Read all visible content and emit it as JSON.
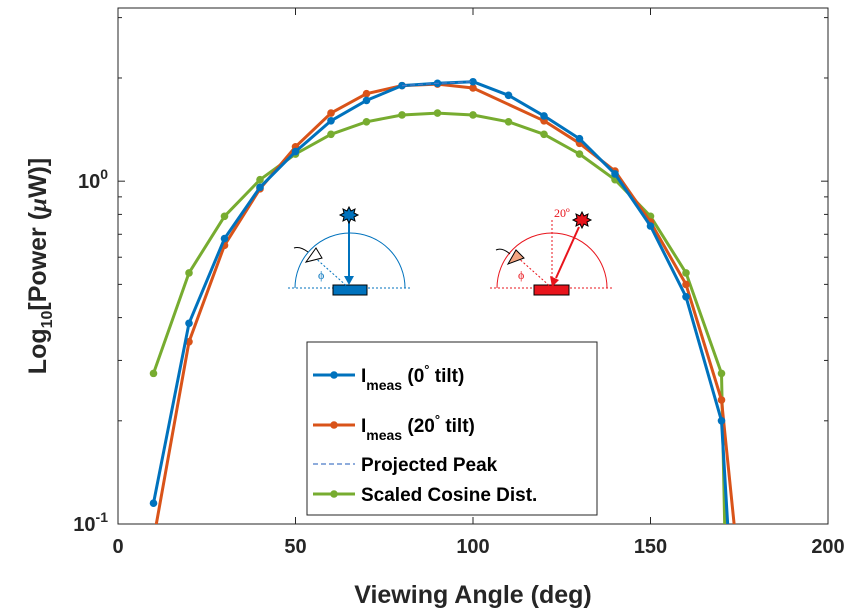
{
  "chart_data": {
    "type": "line",
    "title": "",
    "xlabel": "Viewing Angle (deg)",
    "ylabel_parts": {
      "pre": "Log",
      "sub": "10",
      "post": "[Power (",
      "mu": "μ",
      "unit": "W)]"
    },
    "xlim": [
      0,
      200
    ],
    "ylim": [
      0.1,
      3.2
    ],
    "yscale": "log",
    "grid": false,
    "xticks": [
      0,
      50,
      100,
      150,
      200
    ],
    "yticks": [
      {
        "value": 1,
        "base": "10",
        "exp": "0"
      },
      {
        "value": 0.1,
        "base": "10",
        "exp": "-1"
      }
    ],
    "legend_position": "lower-center",
    "series": [
      {
        "key": "tilt0",
        "legend": {
          "main": "I",
          "sub": "meas",
          "rest": " (0",
          "deg": "°",
          "tail": " tilt)"
        },
        "color": "#0072BD",
        "style": "solid-markers",
        "x": [
          10,
          20,
          30,
          40,
          50,
          60,
          70,
          80,
          90,
          100,
          110,
          120,
          130,
          140,
          150,
          160,
          170,
          172
        ],
        "y": [
          0.115,
          0.385,
          0.68,
          0.96,
          1.22,
          1.5,
          1.72,
          1.9,
          1.93,
          1.95,
          1.78,
          1.55,
          1.33,
          1.05,
          0.74,
          0.46,
          0.2,
          0.09
        ]
      },
      {
        "key": "tilt20",
        "legend": {
          "main": "I",
          "sub": "meas",
          "rest": " (20",
          "deg": "°",
          "tail": " tilt)"
        },
        "color": "#D95319",
        "style": "solid-markers",
        "x": [
          10,
          20,
          30,
          40,
          50,
          60,
          70,
          80,
          90,
          100,
          110,
          120,
          130,
          140,
          150,
          160,
          170,
          174
        ],
        "y": [
          0.09,
          0.34,
          0.65,
          0.95,
          1.26,
          1.58,
          1.8,
          1.9,
          1.92,
          1.87,
          null,
          1.5,
          1.29,
          1.07,
          0.76,
          0.5,
          0.23,
          0.09
        ]
      },
      {
        "key": "peak",
        "legend": {
          "main": "Projected Peak"
        },
        "color": "#4A7BC8",
        "style": "dashed",
        "x": [
          80,
          90,
          100
        ],
        "y": [
          1.9,
          1.93,
          1.95
        ]
      },
      {
        "key": "cosine",
        "legend": {
          "main": "Scaled Cosine Dist."
        },
        "color": "#77AC30",
        "style": "solid-markers",
        "x": [
          10,
          20,
          30,
          40,
          50,
          60,
          70,
          80,
          90,
          100,
          110,
          120,
          130,
          140,
          150,
          160,
          170,
          171
        ],
        "y": [
          0.275,
          0.54,
          0.79,
          1.01,
          1.2,
          1.37,
          1.49,
          1.56,
          1.58,
          1.56,
          1.49,
          1.37,
          1.2,
          1.01,
          0.79,
          0.54,
          0.275,
          0.09
        ]
      }
    ],
    "annotations": {
      "phi": "ϕ",
      "tilt_angle": "20º"
    }
  }
}
